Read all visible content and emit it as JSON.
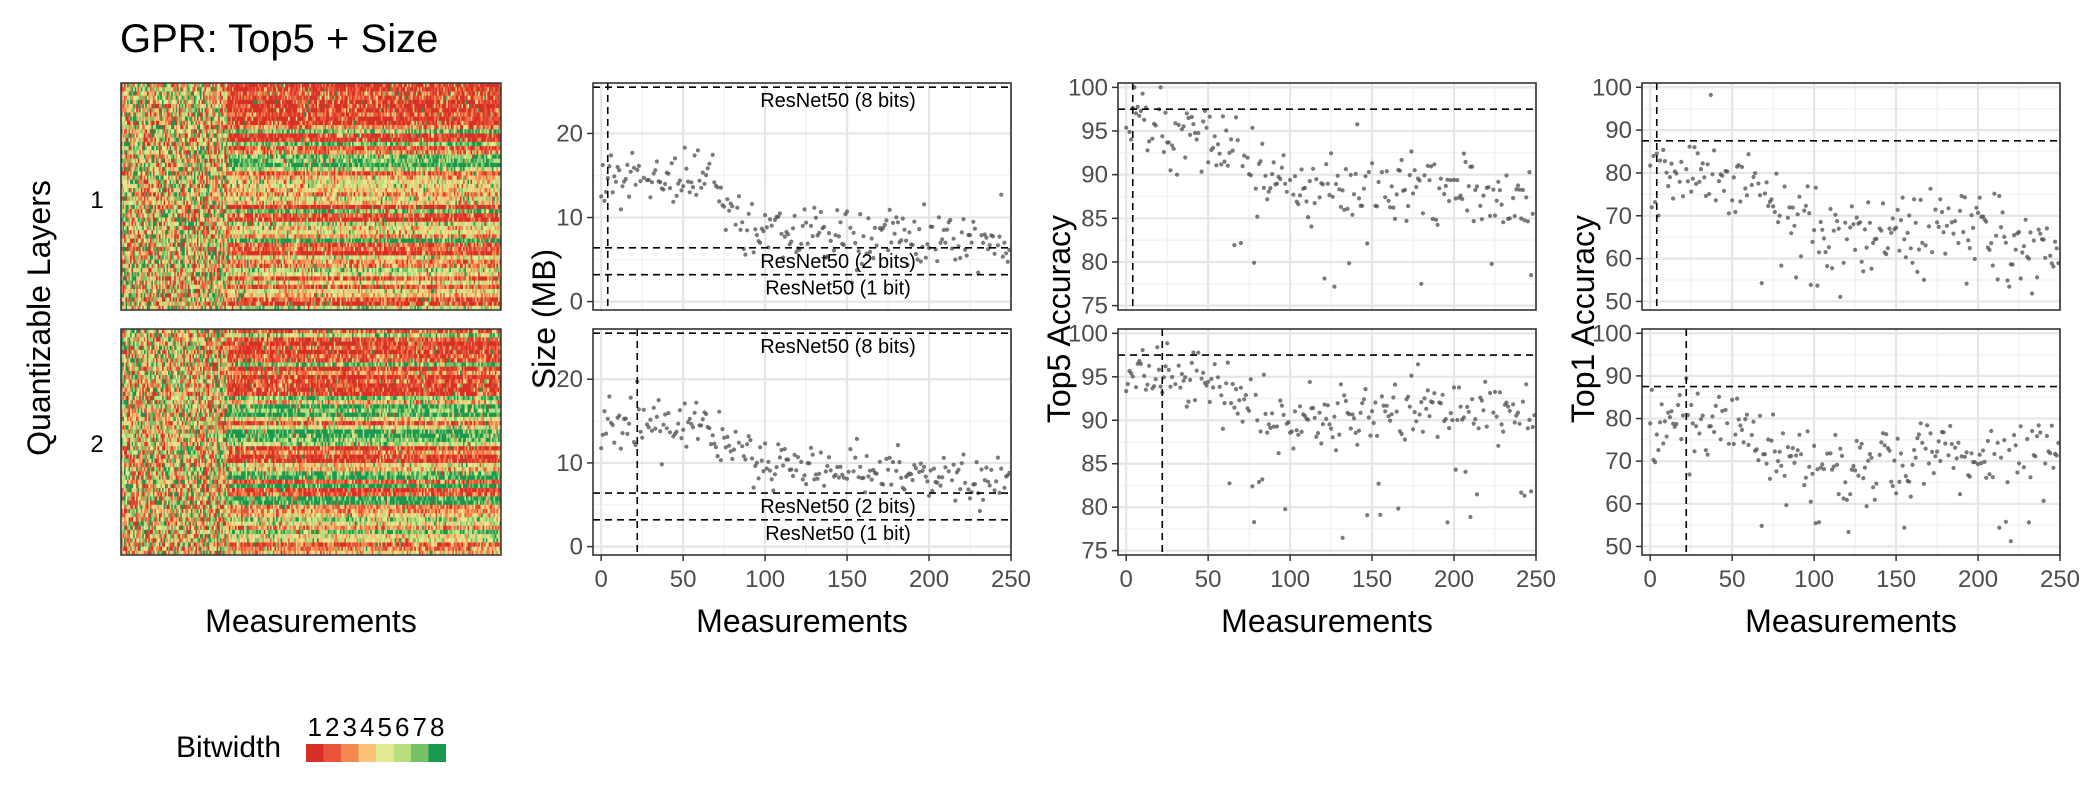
{
  "title": "GPR: Top5 + Size",
  "colors": {
    "bitwidth": [
      "#d73027",
      "#e8553a",
      "#f4894f",
      "#fbc37a",
      "#e3e990",
      "#b7df7e",
      "#74c167",
      "#1a9850"
    ],
    "panel_border": "#333333",
    "grid_major": "#e6e6e6",
    "grid_minor": "#f3f3f3",
    "point": "#4d4d4d"
  },
  "heatmap": {
    "ylabel": "Quantizable Layers",
    "xlabel": "Measurements",
    "strip_labels": [
      "1",
      "2"
    ]
  },
  "legend": {
    "title": "Bitwidth",
    "labels": [
      "1",
      "2",
      "3",
      "4",
      "5",
      "6",
      "7",
      "8"
    ]
  },
  "chart_data": [
    {
      "type": "heatmap",
      "facets": [
        "1",
        "2"
      ],
      "xlabel": "Measurements",
      "ylabel": "Quantizable Layers",
      "value_range": [
        1,
        8
      ],
      "description_note": "bitwidth per layer per measurement; random-like for first ~30 measurements, then layer-structured"
    },
    {
      "type": "scatter",
      "xlabel": "Measurements",
      "ylabel": "Size (MB)",
      "xlim": [
        -5,
        250
      ],
      "ylim": [
        -1,
        26
      ],
      "xticks": [
        0,
        50,
        100,
        150,
        200,
        250
      ],
      "yticks": [
        0,
        10,
        20
      ],
      "grid": true,
      "facets": [
        {
          "vline": 4,
          "hlines": [
            {
              "y": 25.5,
              "label": "ResNet50 (8 bits)"
            },
            {
              "y": 6.4,
              "label": "ResNet50 (2 bits)"
            },
            {
              "y": 3.2,
              "label": "ResNet50 (1 bit)"
            }
          ],
          "trend": [
            [
              0,
              14
            ],
            [
              20,
              14.5
            ],
            [
              50,
              14.5
            ],
            [
              65,
              15
            ],
            [
              75,
              12
            ],
            [
              90,
              8.5
            ],
            [
              120,
              8
            ],
            [
              160,
              7.5
            ],
            [
              200,
              7.5
            ],
            [
              245,
              6.8
            ]
          ],
          "noise": 1.6
        },
        {
          "vline": 22,
          "hlines": [
            {
              "y": 25.5,
              "label": "ResNet50 (8 bits)"
            },
            {
              "y": 6.4,
              "label": "ResNet50 (2 bits)"
            },
            {
              "y": 3.2,
              "label": "ResNet50 (1 bit)"
            }
          ],
          "trend": [
            [
              0,
              14
            ],
            [
              30,
              14.5
            ],
            [
              60,
              15
            ],
            [
              75,
              12
            ],
            [
              90,
              10.5
            ],
            [
              120,
              9.5
            ],
            [
              160,
              9
            ],
            [
              200,
              8.5
            ],
            [
              245,
              8.2
            ]
          ],
          "noise": 1.5
        }
      ]
    },
    {
      "type": "scatter",
      "xlabel": "Measurements",
      "ylabel": "Top5 Accuracy",
      "xlim": [
        -5,
        250
      ],
      "ylim": [
        74.5,
        100.5
      ],
      "xticks": [
        0,
        50,
        100,
        150,
        200,
        250
      ],
      "yticks": [
        75,
        80,
        85,
        90,
        95,
        100
      ],
      "grid": true,
      "facets": [
        {
          "vline": 4,
          "hline": 97.5,
          "trend": [
            [
              0,
              95.5
            ],
            [
              30,
              95
            ],
            [
              60,
              94
            ],
            [
              80,
              90
            ],
            [
              120,
              89
            ],
            [
              160,
              89
            ],
            [
              200,
              88.5
            ],
            [
              245,
              86.5
            ]
          ],
          "noise": 2.2,
          "outlier_low": 76
        },
        {
          "vline": 22,
          "hline": 97.5,
          "trend": [
            [
              0,
              95
            ],
            [
              30,
              95
            ],
            [
              55,
              94
            ],
            [
              75,
              91
            ],
            [
              120,
              90
            ],
            [
              160,
              91.5
            ],
            [
              200,
              91
            ],
            [
              245,
              91
            ]
          ],
          "noise": 1.8,
          "outlier_low": 76
        }
      ]
    },
    {
      "type": "scatter",
      "xlabel": "Measurements",
      "ylabel": "Top1 Accuracy",
      "xlim": [
        -5,
        250
      ],
      "ylim": [
        48,
        101
      ],
      "xticks": [
        0,
        50,
        100,
        150,
        200,
        250
      ],
      "yticks": [
        50,
        60,
        70,
        80,
        90,
        100
      ],
      "grid": true,
      "facets": [
        {
          "vline": 4,
          "hline": 87.5,
          "trend": [
            [
              0,
              78
            ],
            [
              30,
              78
            ],
            [
              60,
              77
            ],
            [
              80,
              70
            ],
            [
              120,
              67
            ],
            [
              160,
              68
            ],
            [
              200,
              66
            ],
            [
              245,
              62
            ]
          ],
          "noise": 4.5,
          "outlier_low": 51
        },
        {
          "vline": 22,
          "hline": 87.5,
          "trend": [
            [
              0,
              79
            ],
            [
              30,
              79
            ],
            [
              55,
              78
            ],
            [
              75,
              72
            ],
            [
              120,
              68
            ],
            [
              160,
              71
            ],
            [
              200,
              70
            ],
            [
              245,
              71
            ]
          ],
          "noise": 4,
          "outlier_low": 51
        }
      ]
    }
  ]
}
